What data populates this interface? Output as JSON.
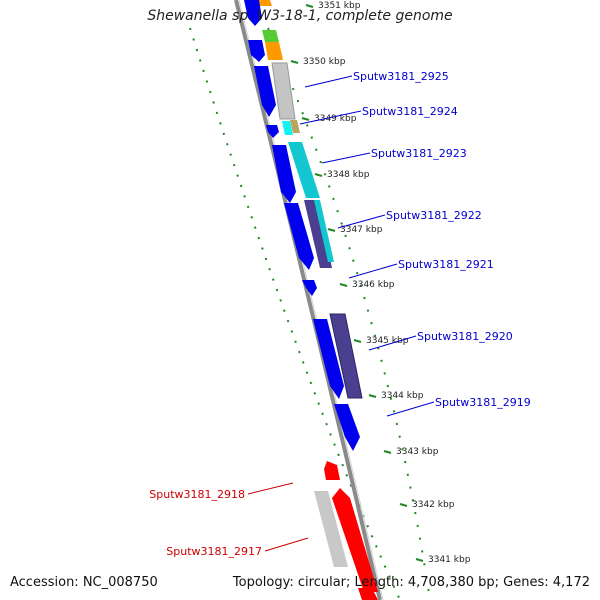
{
  "title": "Shewanella sp. W3-18-1, complete genome",
  "accession_label": "Accession: NC_008750",
  "topology_label": "Topology: circular; Length: 4,708,380 bp; Genes: 4,172",
  "colors": {
    "forward_cds": "#0000ee",
    "reverse_cds": "#ff0000",
    "gray_feature": "#bdbdbd",
    "cyan_feature": "#13c7d1",
    "slate_feature": "#4b3f8f",
    "orange_feature": "#ff9900",
    "green_feature": "#55cc33",
    "backbone": "#8a8a8a",
    "ruler_dots": "#228822",
    "forward_label": "#0000cc",
    "reverse_label": "#cc0000"
  },
  "kbp_ticks": [
    {
      "label": "3351 kbp"
    },
    {
      "label": "3350 kbp"
    },
    {
      "label": "3349 kbp"
    },
    {
      "label": "3348 kbp"
    },
    {
      "label": "3347 kbp"
    },
    {
      "label": "3346 kbp"
    },
    {
      "label": "3345 kbp"
    },
    {
      "label": "3344 kbp"
    },
    {
      "label": "3343 kbp"
    },
    {
      "label": "3342 kbp"
    },
    {
      "label": "3341 kbp"
    }
  ],
  "gene_labels": [
    {
      "text": "Sputw3181_2925",
      "strand": "forward"
    },
    {
      "text": "Sputw3181_2924",
      "strand": "forward"
    },
    {
      "text": "Sputw3181_2923",
      "strand": "forward"
    },
    {
      "text": "Sputw3181_2922",
      "strand": "forward"
    },
    {
      "text": "Sputw3181_2921",
      "strand": "forward"
    },
    {
      "text": "Sputw3181_2920",
      "strand": "forward"
    },
    {
      "text": "Sputw3181_2919",
      "strand": "forward"
    },
    {
      "text": "Sputw3181_2918",
      "strand": "reverse"
    },
    {
      "text": "Sputw3181_2917",
      "strand": "reverse"
    }
  ]
}
